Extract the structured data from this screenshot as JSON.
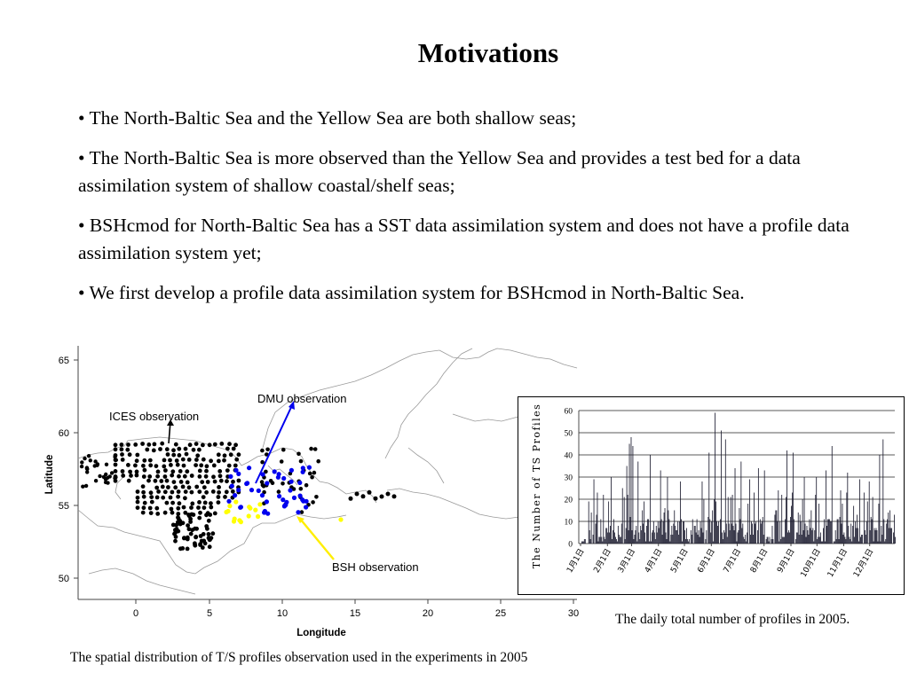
{
  "slide": {
    "title": "Motivations",
    "bullets": [
      "• The North-Baltic Sea and the Yellow Sea are both shallow seas;",
      "• The North-Baltic Sea is more observed than the Yellow Sea and provides a test bed for a data assimilation system of shallow coastal/shelf seas;",
      "•  BSHcmod for North-Baltic Sea has a SST data assimilation system and does not have a profile data assimilation system yet;",
      "• We first develop a profile data assimilation system for  BSHcmod in North-Baltic Sea."
    ],
    "caption_chart": "The daily total number of profiles in 2005.",
    "caption_map": "The spatial distribution of T/S profiles observation used in the experiments in 2005"
  },
  "map": {
    "ylabel": "Latitude",
    "xlabel": "Longitude",
    "xticks": [
      "0",
      "5",
      "10",
      "15",
      "20",
      "25",
      "30"
    ],
    "yticks": [
      "65",
      "60",
      "55",
      "50"
    ],
    "annotations": {
      "ices": "ICES observation",
      "dmu": "DMU observation",
      "bsh": "BSH observation"
    },
    "colors": {
      "ices": "#000000",
      "dmu": "#0000ee",
      "bsh": "#ffff00",
      "coast": "#999999"
    }
  },
  "chart_data": {
    "type": "bar",
    "ylabel": "The Number of TS Profiles",
    "ylim": [
      0,
      60
    ],
    "yticks": [
      0,
      10,
      20,
      30,
      40,
      50,
      60
    ],
    "xtick_labels": [
      "1月1日",
      "2月1日",
      "3月1日",
      "4月1日",
      "5月1日",
      "6月1日",
      "7月1日",
      "8月1日",
      "9月1日",
      "10月1日",
      "11月1日",
      "12月1日"
    ],
    "grid": true,
    "bar_color": "#1a1a2e",
    "peaks": [
      {
        "day": 15,
        "value": 29
      },
      {
        "day": 35,
        "value": 30
      },
      {
        "day": 48,
        "value": 25
      },
      {
        "day": 53,
        "value": 35
      },
      {
        "day": 56,
        "value": 45
      },
      {
        "day": 58,
        "value": 48
      },
      {
        "day": 60,
        "value": 44
      },
      {
        "day": 66,
        "value": 37
      },
      {
        "day": 80,
        "value": 40
      },
      {
        "day": 92,
        "value": 33
      },
      {
        "day": 100,
        "value": 30
      },
      {
        "day": 115,
        "value": 28
      },
      {
        "day": 140,
        "value": 28
      },
      {
        "day": 148,
        "value": 41
      },
      {
        "day": 155,
        "value": 59
      },
      {
        "day": 162,
        "value": 51
      },
      {
        "day": 167,
        "value": 47
      },
      {
        "day": 178,
        "value": 34
      },
      {
        "day": 185,
        "value": 37
      },
      {
        "day": 195,
        "value": 29
      },
      {
        "day": 205,
        "value": 34
      },
      {
        "day": 212,
        "value": 33
      },
      {
        "day": 228,
        "value": 24
      },
      {
        "day": 238,
        "value": 42
      },
      {
        "day": 245,
        "value": 41
      },
      {
        "day": 258,
        "value": 30
      },
      {
        "day": 272,
        "value": 30
      },
      {
        "day": 283,
        "value": 33
      },
      {
        "day": 290,
        "value": 44
      },
      {
        "day": 300,
        "value": 24
      },
      {
        "day": 308,
        "value": 32
      },
      {
        "day": 322,
        "value": 29
      },
      {
        "day": 333,
        "value": 28
      },
      {
        "day": 345,
        "value": 40
      },
      {
        "day": 349,
        "value": 47
      },
      {
        "day": 357,
        "value": 15
      },
      {
        "day": 362,
        "value": 13
      }
    ]
  }
}
